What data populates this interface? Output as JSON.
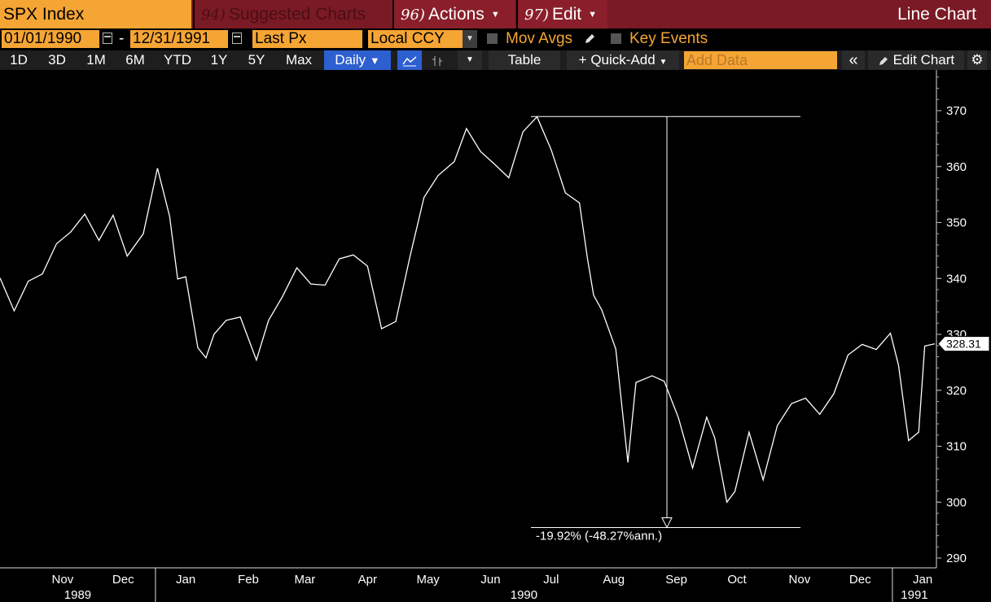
{
  "toolbar1": {
    "ticker": "SPX Index",
    "suggested": {
      "num": "94)",
      "label": "Suggested Charts"
    },
    "actions": {
      "num": "96)",
      "label": "Actions"
    },
    "edit": {
      "num": "97)",
      "label": "Edit"
    },
    "chart_title": "Line Chart"
  },
  "toolbar2": {
    "start_date": "01/01/1990",
    "end_date": "12/31/1991",
    "price_field": "Last Px",
    "currency": "Local CCY",
    "mov_avgs": "Mov Avgs",
    "key_events": "Key Events"
  },
  "toolbar3": {
    "periods": [
      "1D",
      "3D",
      "1M",
      "6M",
      "YTD",
      "1Y",
      "5Y",
      "Max"
    ],
    "frequency": "Daily",
    "table": "Table",
    "quick_add": "Quick-Add",
    "add_data_placeholder": "Add Data",
    "edit_chart": "Edit Chart"
  },
  "colors": {
    "orange": "#f5a534",
    "maroon": "#7a1a24",
    "blue": "#2d5fd0"
  },
  "chart_data": {
    "type": "line",
    "series": [
      {
        "x": [
          "1989-10-16",
          "1989-10-23",
          "1989-10-30",
          "1989-11-06",
          "1989-11-13",
          "1989-11-20",
          "1989-11-27",
          "1989-12-04",
          "1989-12-11",
          "1989-12-18",
          "1989-12-26",
          "1990-01-02",
          "1990-01-08",
          "1990-01-12",
          "1990-01-16",
          "1990-01-22",
          "1990-01-26",
          "1990-01-30",
          "1990-02-05",
          "1990-02-12",
          "1990-02-20",
          "1990-02-26",
          "1990-03-05",
          "1990-03-12",
          "1990-03-19",
          "1990-03-26",
          "1990-04-02",
          "1990-04-09",
          "1990-04-16",
          "1990-04-23",
          "1990-04-30",
          "1990-05-07",
          "1990-05-14",
          "1990-05-21",
          "1990-05-29",
          "1990-06-04",
          "1990-06-11",
          "1990-06-18",
          "1990-06-25",
          "1990-07-02",
          "1990-07-09",
          "1990-07-16",
          "1990-07-23",
          "1990-07-30",
          "1990-08-03",
          "1990-08-06",
          "1990-08-10",
          "1990-08-17",
          "1990-08-23",
          "1990-08-27",
          "1990-09-04",
          "1990-09-10",
          "1990-09-17",
          "1990-09-24",
          "1990-10-01",
          "1990-10-05",
          "1990-10-11",
          "1990-10-15",
          "1990-10-22",
          "1990-10-29",
          "1990-11-05",
          "1990-11-12",
          "1990-11-19",
          "1990-11-26",
          "1990-12-03",
          "1990-12-10",
          "1990-12-17",
          "1990-12-24",
          "1990-12-31",
          "1991-01-04",
          "1991-01-09",
          "1991-01-14",
          "1991-01-17",
          "1991-01-22"
        ],
        "y": [
          340.1,
          334.2,
          339.5,
          340.8,
          346.2,
          348.3,
          351.5,
          346.8,
          351.3,
          344.0,
          348.0,
          359.7,
          351.1,
          339.9,
          340.3,
          327.6,
          325.8,
          330.0,
          332.5,
          333.1,
          325.4,
          332.5,
          336.8,
          341.9,
          339.0,
          338.8,
          343.5,
          344.2,
          342.2,
          331.0,
          332.3,
          343.8,
          354.5,
          358.4,
          360.9,
          366.8,
          362.7,
          360.4,
          358.0,
          366.2,
          368.9,
          363.0,
          355.3,
          353.5,
          343.5,
          337.0,
          334.4,
          327.4,
          307.1,
          321.4,
          322.6,
          321.6,
          315.1,
          306.1,
          315.2,
          311.5,
          300.0,
          301.9,
          312.5,
          304.0,
          313.7,
          317.6,
          318.6,
          315.7,
          319.4,
          326.3,
          328.2,
          327.3,
          330.2,
          324.5,
          311.0,
          312.5,
          327.9,
          328.31
        ]
      }
    ],
    "y_ticks": [
      290,
      300,
      310,
      320,
      330,
      340,
      350,
      360,
      370
    ],
    "ylim": [
      289,
      376
    ],
    "x_tick_labels": [
      "Nov",
      "Dec",
      "Jan",
      "Feb",
      "Mar",
      "Apr",
      "May",
      "Jun",
      "Jul",
      "Aug",
      "Sep",
      "Oct",
      "Nov",
      "Dec",
      "Jan"
    ],
    "year_labels": [
      "1989",
      "1990",
      "1991"
    ],
    "last_value": "328.31",
    "annotation": {
      "label": "-19.92% (-48.27%ann.)",
      "high": 368.95,
      "low": 295.46
    },
    "grid": false,
    "legend": "none"
  }
}
